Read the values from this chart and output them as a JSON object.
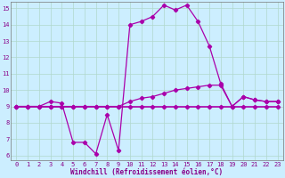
{
  "title": "",
  "xlabel": "Windchill (Refroidissement éolien,°C)",
  "bg_color": "#cceeff",
  "grid_color": "#b0d8cc",
  "line_color": "#aa00aa",
  "xlim_min": -0.5,
  "xlim_max": 23.5,
  "ylim_min": 5.7,
  "ylim_max": 15.4,
  "yticks": [
    6,
    7,
    8,
    9,
    10,
    11,
    12,
    13,
    14,
    15
  ],
  "xticks": [
    0,
    1,
    2,
    3,
    4,
    5,
    6,
    7,
    8,
    9,
    10,
    11,
    12,
    13,
    14,
    15,
    16,
    17,
    18,
    19,
    20,
    21,
    22,
    23
  ],
  "line1_x": [
    0,
    1,
    2,
    3,
    4,
    5,
    6,
    7,
    8,
    9,
    10,
    11,
    12,
    13,
    14,
    15,
    16,
    17,
    18,
    19,
    20,
    21,
    22,
    23
  ],
  "line1_y": [
    9.0,
    9.0,
    9.0,
    9.3,
    9.2,
    6.8,
    6.8,
    6.1,
    8.5,
    6.3,
    14.0,
    14.2,
    14.5,
    15.2,
    14.9,
    15.2,
    14.2,
    12.7,
    10.4,
    9.0,
    9.6,
    9.4,
    9.3,
    9.3
  ],
  "line2_x": [
    0,
    1,
    2,
    3,
    4,
    5,
    6,
    7,
    8,
    9,
    10,
    11,
    12,
    13,
    14,
    15,
    16,
    17,
    18,
    19,
    20,
    21,
    22,
    23
  ],
  "line2_y": [
    9.0,
    9.0,
    9.0,
    9.0,
    9.0,
    9.0,
    9.0,
    9.0,
    9.0,
    9.0,
    9.0,
    9.0,
    9.0,
    9.0,
    9.0,
    9.0,
    9.0,
    9.0,
    9.0,
    9.0,
    9.0,
    9.0,
    9.0,
    9.0
  ],
  "line3_x": [
    0,
    1,
    2,
    3,
    4,
    5,
    6,
    7,
    8,
    9,
    10,
    11,
    12,
    13,
    14,
    15,
    16,
    17,
    18,
    19,
    20,
    21,
    22,
    23
  ],
  "line3_y": [
    9.0,
    9.0,
    9.0,
    9.0,
    9.0,
    9.0,
    9.0,
    9.0,
    9.0,
    9.0,
    9.3,
    9.5,
    9.6,
    9.8,
    10.0,
    10.1,
    10.2,
    10.3,
    10.3,
    9.0,
    9.6,
    9.4,
    9.3,
    9.3
  ],
  "xlabel_fontsize": 5.5,
  "tick_fontsize": 5.0,
  "tick_color": "#880088",
  "label_color": "#880088"
}
